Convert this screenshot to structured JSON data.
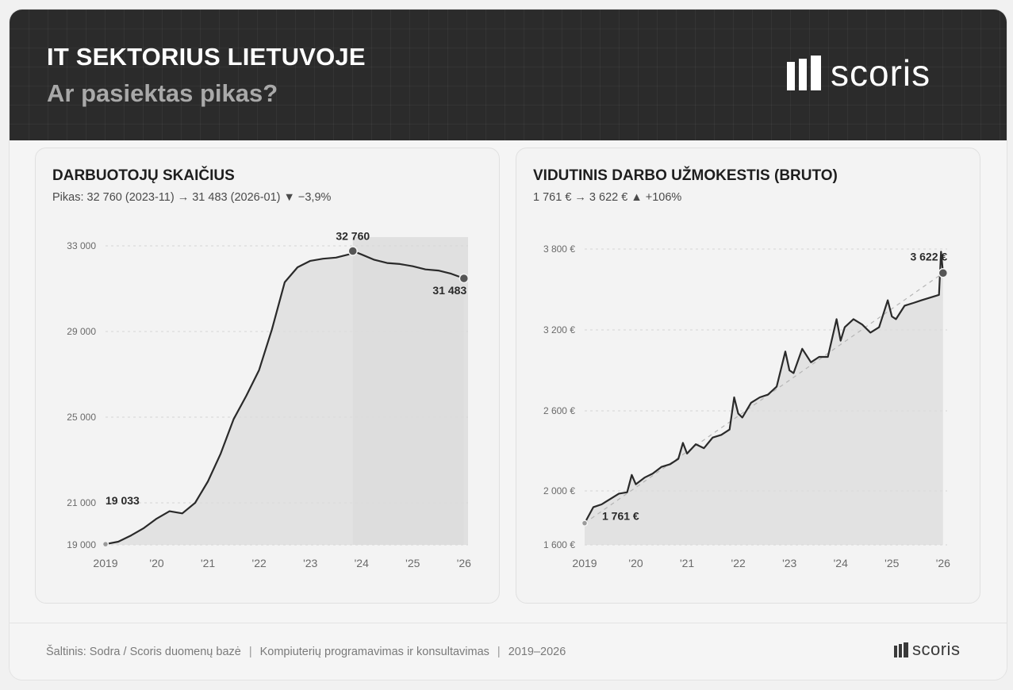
{
  "header": {
    "title": "IT SEKTORIUS LIETUVOJE",
    "subtitle": "Ar pasiektas pikas?",
    "logo_text": "scoris"
  },
  "footer": {
    "source": "Šaltinis: Sodra / Scoris duomenų bazė",
    "sector": "Kompiuterių programavimas ir konsultavimas",
    "period": "2019–2026",
    "logo_text": "scoris"
  },
  "colors": {
    "header_bg": "#2b2b2b",
    "line": "#2a2a2a",
    "area": "#dcdcdc",
    "highlight": "#cfcfcf",
    "marker": "#555555"
  },
  "chart_data": [
    {
      "type": "area",
      "title": "DARBUOTOJŲ SKAIČIUS",
      "subtitle": "Pikas: 32 760 (2023-11) → 31 483 (2026-01) ▼ −3,9%",
      "x_start": 2019.0,
      "x_end": 2026.08,
      "xticks": [
        2019,
        2020,
        2021,
        2022,
        2023,
        2024,
        2025,
        2026
      ],
      "xtick_labels": [
        "2019",
        "'20",
        "'21",
        "'22",
        "'23",
        "'24",
        "'25",
        "'26"
      ],
      "yticks": [
        19000,
        21000,
        25000,
        29000,
        33000
      ],
      "ytick_labels": [
        "19 000",
        "21 000",
        "25 000",
        "29 000",
        "33 000"
      ],
      "ylim": [
        19000,
        33000
      ],
      "highlight_range": [
        2023.83,
        2026.08
      ],
      "x": [
        2019.0,
        2019.25,
        2019.5,
        2019.75,
        2020.0,
        2020.25,
        2020.5,
        2020.75,
        2021.0,
        2021.25,
        2021.5,
        2021.75,
        2022.0,
        2022.25,
        2022.5,
        2022.75,
        2023.0,
        2023.25,
        2023.5,
        2023.75,
        2023.83,
        2024.0,
        2024.25,
        2024.5,
        2024.75,
        2025.0,
        2025.25,
        2025.5,
        2025.75,
        2026.0
      ],
      "values": [
        19033,
        19150,
        19450,
        19800,
        20250,
        20600,
        20500,
        21000,
        22000,
        23300,
        24900,
        26000,
        27200,
        29100,
        31300,
        32000,
        32300,
        32400,
        32450,
        32600,
        32760,
        32600,
        32350,
        32200,
        32150,
        32050,
        31900,
        31850,
        31700,
        31483
      ],
      "annotations": [
        {
          "x": 2019.0,
          "value": 19033,
          "label": "19 033"
        },
        {
          "x": 2023.83,
          "value": 32760,
          "label": "32 760"
        },
        {
          "x": 2026.0,
          "value": 31483,
          "label": "31 483"
        }
      ]
    },
    {
      "type": "area",
      "title": "VIDUTINIS DARBO UŽMOKESTIS (BRUTO)",
      "subtitle": "1 761 € → 3 622 € ▲ +106%",
      "x_start": 2019.0,
      "x_end": 2026.08,
      "xticks": [
        2019,
        2020,
        2021,
        2022,
        2023,
        2024,
        2025,
        2026
      ],
      "xtick_labels": [
        "2019",
        "'20",
        "'21",
        "'22",
        "'23",
        "'24",
        "'25",
        "'26"
      ],
      "yticks": [
        1600,
        2000,
        2600,
        3200,
        3800
      ],
      "ytick_labels": [
        "1 600 €",
        "2 000 €",
        "2 600 €",
        "3 200 €",
        "3 800 €"
      ],
      "ylim": [
        1600,
        3800
      ],
      "trend": {
        "from": [
          2019.0,
          1761
        ],
        "to": [
          2026.0,
          3622
        ]
      },
      "x": [
        2019.0,
        2019.17,
        2019.33,
        2019.5,
        2019.67,
        2019.83,
        2019.92,
        2020.0,
        2020.17,
        2020.33,
        2020.5,
        2020.67,
        2020.83,
        2020.92,
        2021.0,
        2021.17,
        2021.33,
        2021.5,
        2021.67,
        2021.83,
        2021.92,
        2022.0,
        2022.08,
        2022.25,
        2022.42,
        2022.58,
        2022.75,
        2022.92,
        2023.0,
        2023.08,
        2023.25,
        2023.42,
        2023.58,
        2023.75,
        2023.92,
        2024.0,
        2024.08,
        2024.25,
        2024.42,
        2024.58,
        2024.75,
        2024.92,
        2025.0,
        2025.08,
        2025.25,
        2025.42,
        2025.58,
        2025.75,
        2025.92,
        2025.96,
        2026.0
      ],
      "values": [
        1761,
        1880,
        1900,
        1940,
        1980,
        1990,
        2120,
        2050,
        2100,
        2130,
        2180,
        2200,
        2240,
        2360,
        2280,
        2350,
        2320,
        2400,
        2420,
        2460,
        2700,
        2580,
        2550,
        2660,
        2700,
        2720,
        2780,
        3040,
        2900,
        2880,
        3060,
        2960,
        3000,
        3000,
        3280,
        3120,
        3220,
        3280,
        3240,
        3180,
        3220,
        3420,
        3300,
        3280,
        3380,
        3400,
        3420,
        3440,
        3460,
        3780,
        3622
      ],
      "annotations": [
        {
          "x": 2019.0,
          "value": 1761,
          "label": "1 761 €"
        },
        {
          "x": 2026.0,
          "value": 3622,
          "label": "3 622 €"
        }
      ]
    }
  ]
}
